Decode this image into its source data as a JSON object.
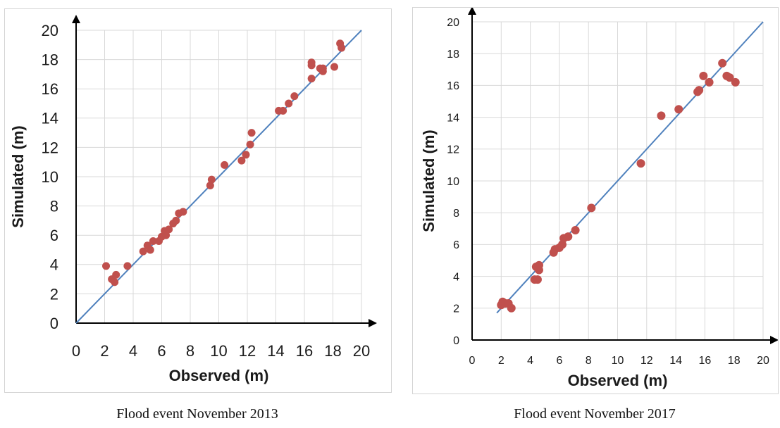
{
  "chart_data": [
    {
      "type": "scatter",
      "xlabel": "Observed (m)",
      "ylabel": "Simulated (m)",
      "xlim": [
        0,
        20
      ],
      "ylim": [
        0,
        20
      ],
      "xticks": [
        0,
        2,
        4,
        6,
        8,
        10,
        12,
        14,
        16,
        18,
        20
      ],
      "yticks": [
        0,
        2,
        4,
        6,
        8,
        10,
        12,
        14,
        16,
        18,
        20
      ],
      "grid": true,
      "point_color": "#c0504d",
      "line_color": "#4f81bd",
      "reference_line": {
        "x": [
          0,
          20
        ],
        "y": [
          0,
          20
        ]
      },
      "caption": "Flood event November 2013",
      "points": [
        {
          "x": 2.1,
          "y": 3.9
        },
        {
          "x": 2.5,
          "y": 3.0
        },
        {
          "x": 2.7,
          "y": 2.8
        },
        {
          "x": 2.8,
          "y": 3.3
        },
        {
          "x": 3.6,
          "y": 3.9
        },
        {
          "x": 4.7,
          "y": 4.9
        },
        {
          "x": 5.0,
          "y": 5.3
        },
        {
          "x": 5.2,
          "y": 5.0
        },
        {
          "x": 5.4,
          "y": 5.6
        },
        {
          "x": 5.8,
          "y": 5.6
        },
        {
          "x": 6.0,
          "y": 5.9
        },
        {
          "x": 6.2,
          "y": 6.3
        },
        {
          "x": 6.3,
          "y": 6.0
        },
        {
          "x": 6.5,
          "y": 6.4
        },
        {
          "x": 6.8,
          "y": 6.8
        },
        {
          "x": 7.0,
          "y": 7.0
        },
        {
          "x": 7.2,
          "y": 7.5
        },
        {
          "x": 7.5,
          "y": 7.6
        },
        {
          "x": 9.4,
          "y": 9.4
        },
        {
          "x": 9.5,
          "y": 9.8
        },
        {
          "x": 10.4,
          "y": 10.8
        },
        {
          "x": 11.6,
          "y": 11.1
        },
        {
          "x": 11.9,
          "y": 11.5
        },
        {
          "x": 12.2,
          "y": 12.2
        },
        {
          "x": 12.3,
          "y": 13.0
        },
        {
          "x": 14.2,
          "y": 14.5
        },
        {
          "x": 14.5,
          "y": 14.5
        },
        {
          "x": 14.9,
          "y": 15.0
        },
        {
          "x": 15.3,
          "y": 15.5
        },
        {
          "x": 16.5,
          "y": 16.7
        },
        {
          "x": 16.5,
          "y": 17.6
        },
        {
          "x": 16.5,
          "y": 17.8
        },
        {
          "x": 17.1,
          "y": 17.4
        },
        {
          "x": 17.3,
          "y": 17.2
        },
        {
          "x": 17.3,
          "y": 17.4
        },
        {
          "x": 18.1,
          "y": 17.5
        },
        {
          "x": 18.5,
          "y": 19.1
        },
        {
          "x": 18.6,
          "y": 18.8
        }
      ]
    },
    {
      "type": "scatter",
      "xlabel": "Observed (m)",
      "ylabel": "Simulated (m)",
      "xlim": [
        0,
        20
      ],
      "ylim": [
        0,
        20
      ],
      "xticks": [
        0,
        2,
        4,
        6,
        8,
        10,
        12,
        14,
        16,
        18,
        20
      ],
      "yticks": [
        0,
        2,
        4,
        6,
        8,
        10,
        12,
        14,
        16,
        18,
        20
      ],
      "grid": true,
      "point_color": "#c0504d",
      "line_color": "#4f81bd",
      "reference_line": {
        "x": [
          1.7,
          20
        ],
        "y": [
          1.7,
          20
        ]
      },
      "caption": "Flood event November 2017",
      "points": [
        {
          "x": 2.0,
          "y": 2.2
        },
        {
          "x": 2.1,
          "y": 2.4
        },
        {
          "x": 2.3,
          "y": 2.3
        },
        {
          "x": 2.5,
          "y": 2.3
        },
        {
          "x": 2.7,
          "y": 2.0
        },
        {
          "x": 4.3,
          "y": 3.8
        },
        {
          "x": 4.4,
          "y": 4.6
        },
        {
          "x": 4.5,
          "y": 3.8
        },
        {
          "x": 4.6,
          "y": 4.4
        },
        {
          "x": 4.6,
          "y": 4.7
        },
        {
          "x": 5.6,
          "y": 5.5
        },
        {
          "x": 5.7,
          "y": 5.7
        },
        {
          "x": 6.0,
          "y": 5.8
        },
        {
          "x": 6.2,
          "y": 6.0
        },
        {
          "x": 6.3,
          "y": 6.4
        },
        {
          "x": 6.6,
          "y": 6.5
        },
        {
          "x": 7.1,
          "y": 6.9
        },
        {
          "x": 8.2,
          "y": 8.3
        },
        {
          "x": 11.6,
          "y": 11.1
        },
        {
          "x": 13.0,
          "y": 14.1
        },
        {
          "x": 14.2,
          "y": 14.5
        },
        {
          "x": 15.5,
          "y": 15.6
        },
        {
          "x": 15.6,
          "y": 15.7
        },
        {
          "x": 15.9,
          "y": 16.6
        },
        {
          "x": 16.3,
          "y": 16.2
        },
        {
          "x": 17.2,
          "y": 17.4
        },
        {
          "x": 17.5,
          "y": 16.6
        },
        {
          "x": 17.7,
          "y": 16.5
        },
        {
          "x": 18.1,
          "y": 16.2
        }
      ]
    }
  ]
}
